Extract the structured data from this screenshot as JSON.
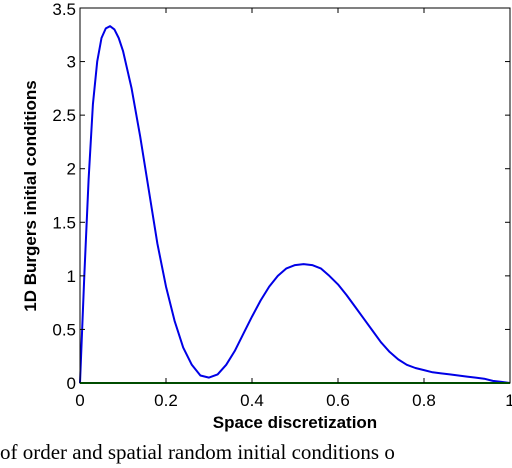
{
  "chart_data": {
    "type": "line",
    "title": "",
    "xlabel": "Space discretization",
    "ylabel": "1D Burgers initial conditions",
    "xlim": [
      0,
      1
    ],
    "ylim": [
      0,
      3.5
    ],
    "x_ticks": [
      "0",
      "0.2",
      "0.4",
      "0.6",
      "0.8",
      "1"
    ],
    "y_ticks": [
      "0",
      "0.5",
      "1",
      "1.5",
      "2",
      "2.5",
      "3",
      "3.5"
    ],
    "grid": false,
    "legend": "none",
    "series": [
      {
        "color": "#0000e6",
        "x": [
          0,
          0.01,
          0.02,
          0.03,
          0.04,
          0.05,
          0.06,
          0.07,
          0.08,
          0.09,
          0.1,
          0.12,
          0.14,
          0.16,
          0.18,
          0.2,
          0.22,
          0.24,
          0.26,
          0.28,
          0.3,
          0.32,
          0.34,
          0.36,
          0.38,
          0.4,
          0.42,
          0.44,
          0.46,
          0.48,
          0.5,
          0.52,
          0.54,
          0.56,
          0.58,
          0.6,
          0.62,
          0.64,
          0.66,
          0.68,
          0.7,
          0.72,
          0.74,
          0.76,
          0.78,
          0.8,
          0.82,
          0.84,
          0.86,
          0.88,
          0.9,
          0.92,
          0.94,
          0.96,
          0.98,
          1.0
        ],
        "y": [
          0.0,
          1.0,
          1.9,
          2.6,
          3.0,
          3.22,
          3.31,
          3.33,
          3.3,
          3.22,
          3.1,
          2.75,
          2.3,
          1.8,
          1.3,
          0.9,
          0.58,
          0.33,
          0.17,
          0.07,
          0.05,
          0.08,
          0.17,
          0.3,
          0.46,
          0.62,
          0.77,
          0.9,
          1.0,
          1.07,
          1.1,
          1.11,
          1.1,
          1.07,
          1.0,
          0.92,
          0.82,
          0.71,
          0.6,
          0.49,
          0.38,
          0.29,
          0.22,
          0.17,
          0.14,
          0.12,
          0.1,
          0.09,
          0.08,
          0.07,
          0.06,
          0.05,
          0.04,
          0.02,
          0.01,
          0.0
        ]
      },
      {
        "color": "#009900",
        "x": [
          0,
          1
        ],
        "y": [
          0,
          0
        ]
      }
    ]
  },
  "caption": "of order and spatial random initial conditions o"
}
